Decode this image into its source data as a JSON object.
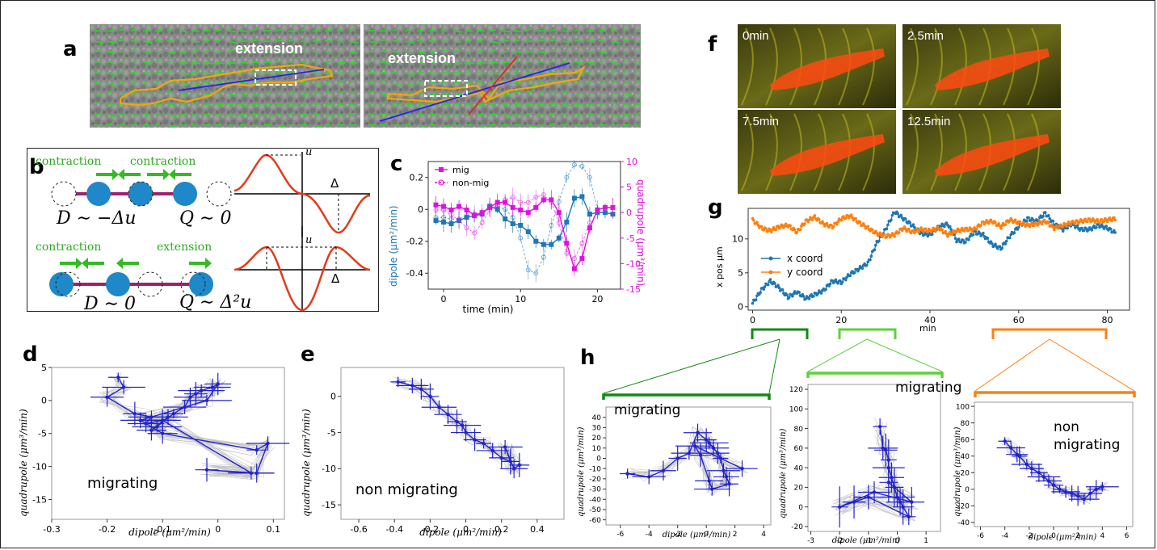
{
  "panels": {
    "a": {
      "label": "a",
      "left_text": "extension",
      "right_text": "extension"
    },
    "b": {
      "label": "b",
      "top_left_label": "contraction",
      "top_right_label": "contraction",
      "bottom_left_label": "contraction",
      "bottom_right_label": "extension",
      "top_eq_D": "D ∼ −Δu",
      "top_eq_Q": "Q ∼ 0",
      "bottom_eq_D": "D ∼ 0",
      "bottom_eq_Q": "Q ∼ Δ²u",
      "u": "u",
      "delta": "Δ"
    },
    "c": {
      "label": "c",
      "ylabel_left": "dipole (μm²/min)",
      "ylabel_right": "quadrupole (μm³/min)",
      "xlabel": "time (min)",
      "legend": [
        "mig",
        "non-mig"
      ]
    },
    "d": {
      "label": "d",
      "text": "migrating",
      "xlabel": "dipole (μm²/min)",
      "ylabel": "quadrupole (μm³/min)"
    },
    "e": {
      "label": "e",
      "text": "non migrating",
      "xlabel": "dipole (μm²/min)",
      "ylabel": "quadrupole (μm³/min)"
    },
    "f": {
      "label": "f",
      "frames": [
        "0min",
        "2.5min",
        "7.5min",
        "12.5min"
      ]
    },
    "g": {
      "label": "g",
      "ylabel": "x pos μm",
      "xlabel": "min",
      "legend": [
        "x coord",
        "y coord"
      ]
    },
    "h": {
      "label": "h",
      "sub1": "migrating",
      "sub2": "migrating",
      "sub3": "non\nmigrating",
      "xlabel": "dipole (μm²/min)",
      "ylabel": "quadrupole (μm³/min)"
    }
  },
  "colors": {
    "blue": "#1f77b4",
    "magenta": "#e010e0",
    "orange": "#ff7f0e",
    "darkgreen": "#138a13",
    "lightgreen": "#5ed13a",
    "trace": "#2222cc"
  },
  "chart_data": [
    {
      "id": "c",
      "type": "line",
      "xlim": [
        -2,
        23
      ],
      "ylim": [
        -0.5,
        0.3
      ],
      "ylim_right": [
        -15,
        10
      ],
      "xticks": [
        0,
        10,
        20
      ],
      "yticks": [
        -0.4,
        -0.2,
        0.0,
        0.2
      ],
      "yticks_right": [
        -15,
        -10,
        -5,
        0,
        5,
        10
      ],
      "series": [
        {
          "name": "mig",
          "axis": "left",
          "x": [
            -1,
            0,
            1,
            2,
            3,
            4,
            5,
            6,
            7,
            8,
            9,
            10,
            11,
            12,
            13,
            14,
            15,
            16,
            17,
            18,
            19,
            20,
            21,
            22
          ],
          "values": [
            -0.07,
            -0.08,
            -0.09,
            -0.07,
            -0.05,
            -0.04,
            -0.03,
            0.02,
            0.0,
            -0.06,
            -0.09,
            -0.1,
            -0.14,
            -0.2,
            -0.22,
            -0.22,
            -0.18,
            -0.08,
            0.07,
            0.08,
            -0.03,
            -0.02,
            -0.02,
            -0.03
          ]
        },
        {
          "name": "non-mig",
          "axis": "left",
          "x": [
            -1,
            0,
            1,
            2,
            3,
            4,
            5,
            6,
            7,
            8,
            9,
            10,
            11,
            12,
            13,
            14,
            15,
            16,
            17,
            18,
            19,
            20
          ],
          "values": [
            -0.05,
            -0.05,
            -0.06,
            -0.06,
            -0.04,
            -0.03,
            -0.02,
            0.01,
            0.02,
            0.0,
            -0.05,
            -0.18,
            -0.38,
            -0.4,
            -0.3,
            -0.1,
            0.05,
            0.2,
            0.28,
            0.27,
            0.2,
            0.0
          ]
        },
        {
          "name": "mig",
          "axis": "right",
          "x": [
            -1,
            0,
            1,
            2,
            3,
            4,
            5,
            6,
            7,
            8,
            9,
            10,
            11,
            12,
            13,
            14,
            15,
            16,
            17,
            18,
            19,
            20,
            21,
            22
          ],
          "values": [
            1.5,
            1.2,
            0.5,
            1.2,
            0.5,
            -0.5,
            0.0,
            1.0,
            2.0,
            2.0,
            1.0,
            0.5,
            0.0,
            1.0,
            2.5,
            2.5,
            0.0,
            -6.0,
            -11.0,
            -9.0,
            -3.0,
            0.5,
            1.0,
            1.0
          ]
        },
        {
          "name": "non-mig",
          "axis": "right",
          "x": [
            -1,
            0,
            1,
            2,
            3,
            4,
            5,
            6,
            7,
            8,
            9,
            10,
            11,
            12,
            13,
            14,
            15,
            16,
            17,
            18,
            19
          ],
          "values": [
            0.5,
            0.5,
            -0.5,
            -1.5,
            -3.0,
            -4.0,
            -2.0,
            0.5,
            1.5,
            2.5,
            3.0,
            2.0,
            2.0,
            3.0,
            3.5,
            2.0,
            -2.0,
            -8.0,
            -9.0,
            -6.0,
            -2.0
          ]
        }
      ]
    },
    {
      "id": "d",
      "type": "scatter",
      "xlim": [
        -0.3,
        0.12
      ],
      "ylim": [
        -18,
        5
      ],
      "xticks": [
        -0.3,
        -0.2,
        -0.1,
        0.0,
        0.1
      ],
      "yticks": [
        5,
        0,
        -5,
        -10,
        -15
      ],
      "x": [
        -0.18,
        -0.17,
        -0.2,
        -0.15,
        -0.12,
        -0.13,
        -0.1,
        -0.11,
        -0.09,
        -0.12,
        -0.08,
        -0.06,
        -0.05,
        -0.04,
        -0.03,
        -0.01,
        0.0,
        -0.02,
        -0.14,
        -0.1,
        0.07,
        0.09,
        0.07,
        -0.02,
        0.06,
        -0.1
      ],
      "values": [
        3.5,
        2.0,
        0.5,
        -2.0,
        -2.5,
        -3.5,
        -3.0,
        -4.0,
        -2.5,
        -4.5,
        -2.0,
        -1.0,
        0.5,
        1.0,
        1.5,
        2.0,
        2.5,
        0.0,
        -3.0,
        -5.0,
        -7.5,
        -6.5,
        -11.0,
        -10.5,
        -11.0,
        -3.0
      ]
    },
    {
      "id": "e",
      "type": "scatter",
      "xlim": [
        -0.7,
        0.55
      ],
      "ylim": [
        -17,
        4
      ],
      "xticks": [
        -0.6,
        -0.4,
        -0.2,
        0.0,
        0.2,
        0.4
      ],
      "yticks": [
        0,
        -5,
        -10,
        -15
      ],
      "x": [
        -0.38,
        -0.3,
        -0.25,
        -0.2,
        -0.15,
        -0.1,
        -0.05,
        -0.02,
        0.0,
        0.05,
        0.1,
        0.15,
        0.2,
        0.25,
        0.22,
        0.27,
        0.3
      ],
      "values": [
        2.0,
        1.5,
        1.0,
        0.0,
        -1.5,
        -2.5,
        -3.5,
        -4.0,
        -5.0,
        -6.0,
        -6.5,
        -7.5,
        -8.5,
        -9.0,
        -7.0,
        -10.0,
        -9.5
      ]
    },
    {
      "id": "g",
      "type": "line",
      "xlim": [
        -1,
        85
      ],
      "ylim": [
        -0.5,
        14.5
      ],
      "xticks": [
        0,
        20,
        40,
        60,
        80
      ],
      "yticks": [
        0,
        5,
        10
      ],
      "series": [
        {
          "name": "x coord",
          "x": [
            0,
            2,
            4,
            6,
            8,
            10,
            12,
            14,
            16,
            18,
            20,
            22,
            24,
            26,
            28,
            30,
            32,
            34,
            36,
            38,
            40,
            42,
            44,
            46,
            48,
            50,
            52,
            54,
            56,
            58,
            60,
            62,
            64,
            66,
            68,
            70,
            72,
            74,
            76,
            78,
            80,
            82
          ],
          "values": [
            0.5,
            2.5,
            3.8,
            2.8,
            1.4,
            2.2,
            1.2,
            1.8,
            2.4,
            3.8,
            3.6,
            4.8,
            5.6,
            6.4,
            9.4,
            11.4,
            14.0,
            13.0,
            12.0,
            10.8,
            10.6,
            11.8,
            12.2,
            9.8,
            9.6,
            11.0,
            10.6,
            9.2,
            8.6,
            10.4,
            11.8,
            13.0,
            12.6,
            13.8,
            12.2,
            11.4,
            12.2,
            11.4,
            11.4,
            12.0,
            11.6,
            10.8
          ]
        },
        {
          "name": "y coord",
          "x": [
            0,
            2,
            4,
            6,
            8,
            10,
            12,
            14,
            16,
            18,
            20,
            22,
            24,
            26,
            28,
            30,
            32,
            34,
            36,
            38,
            40,
            42,
            44,
            46,
            48,
            50,
            52,
            54,
            56,
            58,
            60,
            62,
            64,
            66,
            68,
            70,
            72,
            74,
            76,
            78,
            80,
            82
          ],
          "values": [
            12.8,
            11.6,
            11.2,
            11.8,
            12.0,
            11.0,
            12.6,
            13.2,
            12.2,
            11.8,
            13.0,
            13.4,
            12.4,
            11.6,
            10.8,
            10.4,
            10.6,
            11.6,
            11.0,
            11.4,
            11.2,
            11.6,
            10.6,
            11.2,
            11.4,
            11.4,
            12.4,
            12.6,
            11.8,
            12.8,
            12.4,
            12.0,
            12.2,
            12.6,
            11.6,
            12.0,
            12.4,
            12.6,
            12.8,
            12.6,
            12.8,
            13.0
          ]
        }
      ]
    },
    {
      "id": "h1",
      "type": "scatter",
      "xlim": [
        -7,
        4.5
      ],
      "ylim": [
        -65,
        50
      ],
      "xticks": [
        -6,
        -4,
        -2,
        0,
        2,
        4
      ],
      "yticks": [
        40,
        30,
        20,
        10,
        0,
        -10,
        -20,
        -30,
        -40,
        -50,
        -60
      ],
      "x": [
        -5.5,
        -4.0,
        -3.0,
        -2.0,
        -1.2,
        -0.6,
        0.0,
        0.2,
        0.5,
        0.8,
        1.0,
        1.2,
        1.4,
        1.6,
        0.4,
        0.2,
        -0.4,
        -0.8,
        2.5
      ],
      "values": [
        -15,
        -18,
        -12,
        0,
        5,
        25,
        18,
        15,
        10,
        5,
        0,
        -12,
        -18,
        -25,
        -30,
        -22,
        3,
        12,
        -10
      ]
    },
    {
      "id": "h2",
      "type": "scatter",
      "xlim": [
        -3.1,
        1.5
      ],
      "ylim": [
        -25,
        125
      ],
      "xticks": [
        -3,
        -2,
        -1,
        0,
        1
      ],
      "yticks": [
        120,
        100,
        80,
        60,
        40,
        20,
        0,
        -20
      ],
      "x": [
        -0.6,
        -0.5,
        -0.4,
        -0.3,
        -0.3,
        -0.2,
        -0.1,
        0.0,
        0.1,
        0.2,
        0.4,
        -1.0,
        -1.5,
        -2.0,
        -0.8,
        0.5,
        -0.3
      ],
      "values": [
        82,
        60,
        58,
        48,
        40,
        30,
        20,
        10,
        5,
        0,
        -10,
        10,
        5,
        0,
        15,
        5,
        25
      ]
    },
    {
      "id": "h3",
      "type": "scatter",
      "xlim": [
        -6.5,
        6.5
      ],
      "ylim": [
        -45,
        105
      ],
      "xticks": [
        -6,
        -4,
        -2,
        0,
        2,
        4,
        6
      ],
      "yticks": [
        100,
        80,
        60,
        40,
        20,
        0,
        -20,
        -40
      ],
      "x": [
        -4.0,
        -3.5,
        -3.0,
        -2.8,
        -2.2,
        -1.8,
        -1.2,
        -0.8,
        -0.4,
        0.0,
        0.5,
        1.0,
        1.5,
        2.0,
        2.5,
        3.0,
        3.5,
        4.0
      ],
      "values": [
        58,
        50,
        42,
        40,
        30,
        25,
        20,
        15,
        10,
        5,
        0,
        -3,
        -5,
        -8,
        -12,
        -5,
        0,
        3
      ]
    }
  ]
}
